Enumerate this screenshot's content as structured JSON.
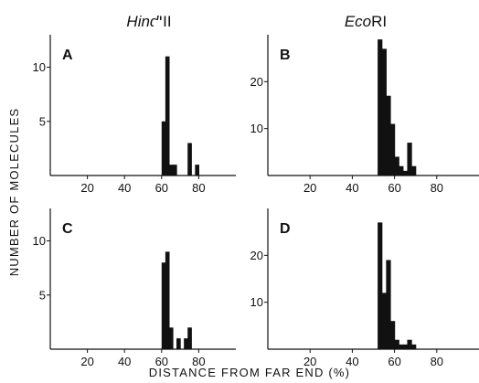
{
  "figure": {
    "ylabel": "NUMBER OF MOLECULES",
    "xlabel": "DISTANCE FROM FAR END (%)",
    "columns": [
      {
        "italic": "Hind",
        "rest": "III"
      },
      {
        "italic": "Eco",
        "rest": "RI"
      }
    ]
  },
  "colors": {
    "bar": "#111111",
    "axis": "#111111"
  },
  "chart_data": [
    {
      "type": "bar",
      "title": "A",
      "xlabel": "DISTANCE FROM FAR END (%)",
      "ylabel": "NUMBER OF MOLECULES",
      "xlim": [
        0,
        100
      ],
      "ylim": [
        0,
        13
      ],
      "xticks": [
        20,
        40,
        60,
        80
      ],
      "yticks": [
        5,
        10
      ],
      "grid": false,
      "bin_width": 2,
      "x": [
        60,
        62,
        64,
        66,
        74,
        78
      ],
      "values": [
        5,
        11,
        1,
        1,
        3,
        1
      ]
    },
    {
      "type": "bar",
      "title": "B",
      "xlabel": "DISTANCE FROM FAR END (%)",
      "ylabel": "NUMBER OF MOLECULES",
      "xlim": [
        0,
        100
      ],
      "ylim": [
        0,
        30
      ],
      "xticks": [
        20,
        40,
        60,
        80
      ],
      "yticks": [
        10,
        20
      ],
      "grid": false,
      "bin_width": 2,
      "x": [
        52,
        54,
        56,
        58,
        60,
        62,
        64,
        66,
        68
      ],
      "values": [
        29,
        27,
        17,
        11,
        4,
        2,
        1,
        7,
        2
      ]
    },
    {
      "type": "bar",
      "title": "C",
      "xlabel": "DISTANCE FROM FAR END (%)",
      "ylabel": "NUMBER OF MOLECULES",
      "xlim": [
        0,
        100
      ],
      "ylim": [
        0,
        13
      ],
      "xticks": [
        20,
        40,
        60,
        80
      ],
      "yticks": [
        5,
        10
      ],
      "grid": false,
      "bin_width": 2,
      "x": [
        60,
        62,
        64,
        68,
        72,
        74
      ],
      "values": [
        8,
        9,
        2,
        1,
        1,
        2
      ]
    },
    {
      "type": "bar",
      "title": "D",
      "xlabel": "DISTANCE FROM FAR END (%)",
      "ylabel": "NUMBER OF MOLECULES",
      "xlim": [
        0,
        100
      ],
      "ylim": [
        0,
        30
      ],
      "xticks": [
        20,
        40,
        60,
        80
      ],
      "yticks": [
        10,
        20
      ],
      "grid": false,
      "bin_width": 2,
      "x": [
        52,
        54,
        56,
        58,
        60,
        62,
        64,
        66,
        68
      ],
      "values": [
        27,
        12,
        19,
        6,
        2,
        1,
        1,
        2,
        1
      ]
    }
  ]
}
